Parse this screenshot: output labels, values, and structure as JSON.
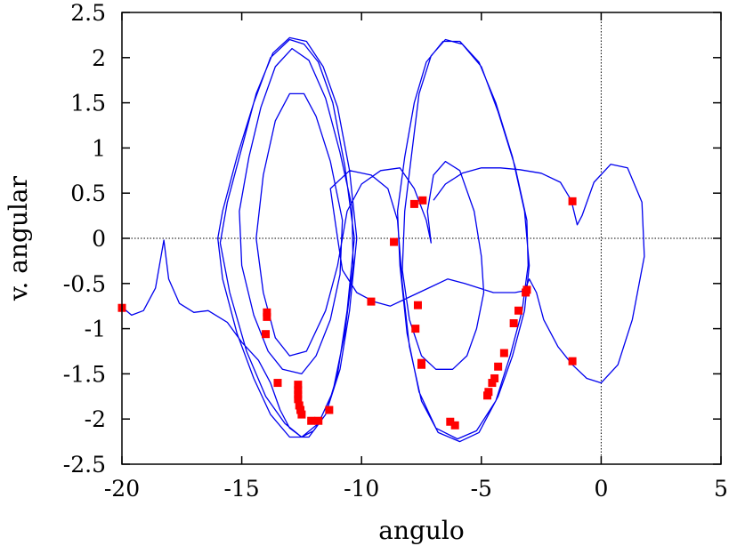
{
  "chart_data": {
    "type": "scatter",
    "title": "",
    "xlabel": "angulo",
    "ylabel": "v. angular",
    "xlim": [
      -20,
      5
    ],
    "ylim": [
      -2.5,
      2.5
    ],
    "x_ticks": [
      -20,
      -15,
      -10,
      -5,
      0,
      5
    ],
    "y_ticks": [
      -2.5,
      -2,
      -1.5,
      -1,
      -0.5,
      0,
      0.5,
      1,
      1.5,
      2,
      2.5
    ],
    "x_tick_labels": [
      "-20",
      "-15",
      "-10",
      "-5",
      "0",
      "5"
    ],
    "y_tick_labels": [
      "-2.5",
      "-2",
      "-1.5",
      "-1",
      "-0.5",
      "0",
      "0.5",
      "1",
      "1.5",
      "2",
      "2.5"
    ],
    "zero_lines": true,
    "grid": false,
    "legend": "none",
    "series": [
      {
        "style": "line",
        "color": "#0000ee",
        "points": [
          [
            -20,
            -0.76
          ],
          [
            -19.6,
            -0.85
          ],
          [
            -19.1,
            -0.8
          ],
          [
            -18.6,
            -0.55
          ],
          [
            -18.25,
            -0.02
          ],
          [
            -18.05,
            -0.45
          ],
          [
            -17.6,
            -0.72
          ],
          [
            -17.0,
            -0.82
          ],
          [
            -16.4,
            -0.8
          ],
          [
            -15.6,
            -0.93
          ],
          [
            -15.0,
            -1.15
          ],
          [
            -14.3,
            -1.35
          ],
          [
            -13.8,
            -1.6
          ],
          [
            -13.4,
            -1.9
          ],
          [
            -13.0,
            -2.1
          ],
          [
            -12.5,
            -2.2
          ],
          [
            -12.0,
            -2.13
          ],
          [
            -11.5,
            -1.95
          ],
          [
            -11.0,
            -1.5
          ],
          [
            -10.6,
            -0.8
          ],
          [
            -10.3,
            0.0
          ],
          [
            -10.7,
            0.8
          ],
          [
            -11.2,
            1.5
          ],
          [
            -11.8,
            1.95
          ],
          [
            -12.4,
            2.15
          ],
          [
            -13.0,
            2.2
          ],
          [
            -13.8,
            2.0
          ],
          [
            -14.5,
            1.5
          ],
          [
            -15.2,
            0.9
          ],
          [
            -15.8,
            0.3
          ],
          [
            -16.0,
            0.0
          ],
          [
            -15.8,
            -0.45
          ],
          [
            -15.2,
            -1.05
          ],
          [
            -14.5,
            -1.55
          ],
          [
            -13.8,
            -1.95
          ],
          [
            -13.0,
            -2.2
          ],
          [
            -12.2,
            -2.2
          ],
          [
            -11.5,
            -1.95
          ],
          [
            -10.9,
            -1.45
          ],
          [
            -10.5,
            -0.8
          ],
          [
            -10.2,
            0.0
          ],
          [
            -10.5,
            0.75
          ],
          [
            -11.0,
            1.45
          ],
          [
            -11.6,
            1.9
          ],
          [
            -12.3,
            2.18
          ],
          [
            -13.0,
            2.22
          ],
          [
            -13.7,
            2.05
          ],
          [
            -14.4,
            1.6
          ],
          [
            -15.0,
            1.0
          ],
          [
            -15.6,
            0.4
          ],
          [
            -15.9,
            -0.05
          ],
          [
            -15.5,
            -0.6
          ],
          [
            -14.8,
            -1.25
          ],
          [
            -14.0,
            -1.75
          ],
          [
            -13.2,
            -2.05
          ],
          [
            -12.5,
            -2.2
          ],
          [
            -11.8,
            -2.05
          ],
          [
            -11.2,
            -1.7
          ],
          [
            -10.7,
            -1.05
          ],
          [
            -10.35,
            -0.3
          ],
          [
            -10.4,
            0.35
          ],
          [
            -10.9,
            0.95
          ],
          [
            -11.5,
            1.55
          ],
          [
            -12.2,
            1.97
          ],
          [
            -12.9,
            2.1
          ],
          [
            -13.6,
            1.9
          ],
          [
            -14.2,
            1.45
          ],
          [
            -14.7,
            0.9
          ],
          [
            -15.1,
            0.3
          ],
          [
            -15.0,
            -0.3
          ],
          [
            -14.5,
            -0.85
          ],
          [
            -13.9,
            -1.25
          ],
          [
            -13.3,
            -1.45
          ],
          [
            -12.5,
            -1.5
          ],
          [
            -11.9,
            -1.3
          ],
          [
            -11.3,
            -0.9
          ],
          [
            -10.9,
            -0.4
          ],
          [
            -10.8,
            0.2
          ],
          [
            -11.3,
            0.85
          ],
          [
            -11.9,
            1.35
          ],
          [
            -12.4,
            1.6
          ],
          [
            -13.0,
            1.6
          ],
          [
            -13.6,
            1.3
          ],
          [
            -14.1,
            0.7
          ],
          [
            -14.4,
            0.0
          ],
          [
            -14.1,
            -0.6
          ],
          [
            -13.6,
            -1.1
          ],
          [
            -13.0,
            -1.3
          ],
          [
            -12.3,
            -1.25
          ],
          [
            -11.5,
            -0.8
          ],
          [
            -11.0,
            -0.3
          ],
          [
            -10.6,
            0.3
          ],
          [
            -10.0,
            0.6
          ],
          [
            -9.2,
            0.75
          ],
          [
            -8.4,
            0.78
          ],
          [
            -7.8,
            0.55
          ],
          [
            -7.3,
            0.2
          ],
          [
            -7.1,
            -0.05
          ],
          [
            -7.25,
            0.3
          ],
          [
            -7.0,
            0.7
          ],
          [
            -6.5,
            0.85
          ],
          [
            -5.9,
            0.75
          ],
          [
            -5.3,
            0.3
          ],
          [
            -5.0,
            -0.2
          ],
          [
            -4.9,
            -0.6
          ],
          [
            -5.2,
            -1.0
          ],
          [
            -5.6,
            -1.3
          ],
          [
            -6.2,
            -1.45
          ],
          [
            -6.9,
            -1.45
          ],
          [
            -7.5,
            -1.3
          ],
          [
            -8.0,
            -0.9
          ],
          [
            -8.3,
            -0.35
          ],
          [
            -8.2,
            0.3
          ],
          [
            -7.9,
            0.95
          ],
          [
            -7.6,
            1.6
          ],
          [
            -7.1,
            2.02
          ],
          [
            -6.5,
            2.2
          ],
          [
            -5.8,
            2.15
          ],
          [
            -5.0,
            1.9
          ],
          [
            -4.3,
            1.4
          ],
          [
            -3.6,
            0.8
          ],
          [
            -3.1,
            0.2
          ],
          [
            -3.05,
            -0.3
          ],
          [
            -3.3,
            -0.8
          ],
          [
            -3.8,
            -1.3
          ],
          [
            -4.4,
            -1.8
          ],
          [
            -5.2,
            -2.13
          ],
          [
            -6.0,
            -2.22
          ],
          [
            -6.9,
            -2.1
          ],
          [
            -7.6,
            -1.7
          ],
          [
            -8.1,
            -1.05
          ],
          [
            -8.4,
            -0.3
          ],
          [
            -8.5,
            0.3
          ],
          [
            -8.2,
            0.9
          ],
          [
            -7.8,
            1.5
          ],
          [
            -7.3,
            1.95
          ],
          [
            -6.6,
            2.18
          ],
          [
            -5.9,
            2.18
          ],
          [
            -5.1,
            1.95
          ],
          [
            -4.4,
            1.5
          ],
          [
            -3.7,
            0.9
          ],
          [
            -3.2,
            0.3
          ],
          [
            -3.0,
            -0.3
          ],
          [
            -3.2,
            -0.8
          ],
          [
            -3.7,
            -1.3
          ],
          [
            -4.3,
            -1.75
          ],
          [
            -5.1,
            -2.15
          ],
          [
            -5.9,
            -2.25
          ],
          [
            -6.8,
            -2.15
          ],
          [
            -7.5,
            -1.8
          ],
          [
            -8.0,
            -1.2
          ],
          [
            -8.3,
            -0.5
          ],
          [
            -8.5,
            0.2
          ],
          [
            -8.9,
            0.55
          ],
          [
            -9.6,
            0.7
          ],
          [
            -10.5,
            0.75
          ],
          [
            -11.3,
            0.55
          ],
          [
            -11.0,
            0.0
          ],
          [
            -10.8,
            -0.35
          ],
          [
            -10.2,
            -0.6
          ],
          [
            -9.5,
            -0.7
          ],
          [
            -8.8,
            -0.75
          ],
          [
            -8.0,
            -0.65
          ],
          [
            -7.2,
            -0.55
          ],
          [
            -6.4,
            -0.45
          ],
          [
            -5.7,
            -0.5
          ],
          [
            -5.1,
            -0.55
          ],
          [
            -4.5,
            -0.6
          ],
          [
            -3.6,
            -0.6
          ],
          [
            -3.2,
            -0.58
          ],
          [
            -3.0,
            -0.45
          ],
          [
            -2.7,
            -0.6
          ],
          [
            -2.4,
            -0.9
          ],
          [
            -1.8,
            -1.2
          ],
          [
            -1.2,
            -1.4
          ],
          [
            -0.6,
            -1.55
          ],
          [
            0.0,
            -1.6
          ],
          [
            0.7,
            -1.4
          ],
          [
            1.3,
            -0.9
          ],
          [
            1.8,
            -0.2
          ],
          [
            1.7,
            0.4
          ],
          [
            1.1,
            0.78
          ],
          [
            0.4,
            0.82
          ],
          [
            -0.3,
            0.62
          ],
          [
            -0.8,
            0.25
          ],
          [
            -1.0,
            0.15
          ],
          [
            -1.25,
            0.42
          ],
          [
            -1.7,
            0.62
          ],
          [
            -2.5,
            0.72
          ],
          [
            -3.4,
            0.76
          ],
          [
            -4.2,
            0.78
          ],
          [
            -5.0,
            0.78
          ],
          [
            -5.8,
            0.72
          ],
          [
            -6.5,
            0.6
          ],
          [
            -7.0,
            0.42
          ]
        ]
      },
      {
        "style": "markers",
        "color": "#ff0000",
        "points": [
          [
            -20,
            -0.77
          ],
          [
            -13.95,
            -0.82
          ],
          [
            -13.95,
            -0.87
          ],
          [
            -14.0,
            -1.06
          ],
          [
            -13.5,
            -1.6
          ],
          [
            -12.65,
            -1.62
          ],
          [
            -12.65,
            -1.68
          ],
          [
            -12.65,
            -1.73
          ],
          [
            -12.65,
            -1.78
          ],
          [
            -12.6,
            -1.85
          ],
          [
            -12.55,
            -1.9
          ],
          [
            -12.5,
            -1.95
          ],
          [
            -12.1,
            -2.02
          ],
          [
            -11.8,
            -2.02
          ],
          [
            -11.35,
            -1.9
          ],
          [
            -9.6,
            -0.7
          ],
          [
            -8.65,
            -0.04
          ],
          [
            -7.8,
            0.38
          ],
          [
            -7.45,
            0.42
          ],
          [
            -7.65,
            -0.74
          ],
          [
            -7.75,
            -1.0
          ],
          [
            -7.5,
            -1.38
          ],
          [
            -7.5,
            -1.4
          ],
          [
            -6.3,
            -2.03
          ],
          [
            -6.1,
            -2.07
          ],
          [
            -4.75,
            -1.74
          ],
          [
            -4.7,
            -1.7
          ],
          [
            -4.55,
            -1.6
          ],
          [
            -4.45,
            -1.55
          ],
          [
            -4.3,
            -1.42
          ],
          [
            -4.05,
            -1.27
          ],
          [
            -3.65,
            -0.94
          ],
          [
            -3.45,
            -0.8
          ],
          [
            -3.15,
            -0.6
          ],
          [
            -3.1,
            -0.57
          ],
          [
            -1.2,
            0.41
          ],
          [
            -1.2,
            -1.36
          ]
        ]
      }
    ]
  }
}
